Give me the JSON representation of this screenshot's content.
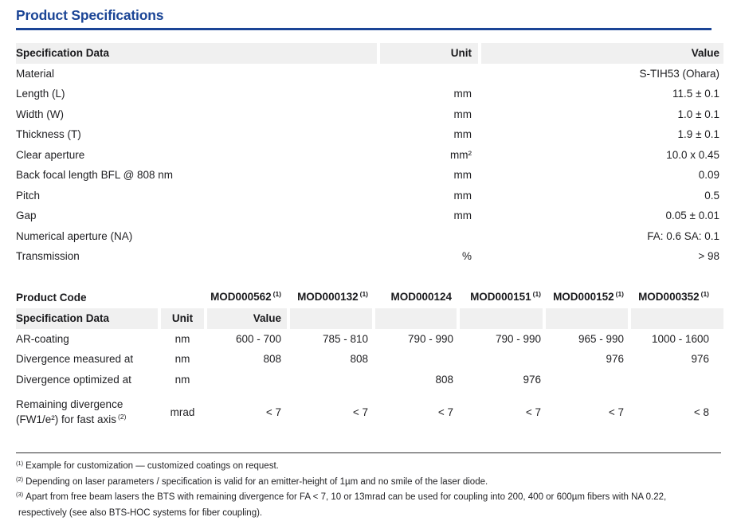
{
  "page": {
    "title": "Product Specifications"
  },
  "colors": {
    "accent_blue": "#1b4596",
    "header_band_gray": "#f0f0f0",
    "text": "#1f1f22"
  },
  "table1": {
    "headers": {
      "spec": "Specification Data",
      "unit": "Unit",
      "value": "Value"
    },
    "rows": [
      {
        "name": "Material",
        "unit": "",
        "value": "S-TIH53 (Ohara)"
      },
      {
        "name": "Length (L)",
        "unit": "mm",
        "value": "11.5 ± 0.1"
      },
      {
        "name": "Width (W)",
        "unit": "mm",
        "value": "1.0 ± 0.1"
      },
      {
        "name": "Thickness (T)",
        "unit": "mm",
        "value": "1.9 ± 0.1"
      },
      {
        "name": "Clear aperture",
        "unit": "mm²",
        "value": "10.0 x 0.45"
      },
      {
        "name": "Back focal length BFL @ 808 nm",
        "unit": "mm",
        "value": "0.09"
      },
      {
        "name": "Pitch",
        "unit": "mm",
        "value": "0.5"
      },
      {
        "name": "Gap",
        "unit": "mm",
        "value": "0.05 ± 0.01"
      },
      {
        "name": "Numerical aperture (NA)",
        "unit": "",
        "value": "FA: 0.6  SA: 0.1"
      },
      {
        "name": "Transmission",
        "unit": "%",
        "value": "> 98"
      }
    ]
  },
  "table2": {
    "product_code_label": "Product Code",
    "product_codes": [
      {
        "code": "MOD000562",
        "note": "(1)"
      },
      {
        "code": "MOD000132",
        "note": "(1)"
      },
      {
        "code": "MOD000124",
        "note": ""
      },
      {
        "code": "MOD000151",
        "note": "(1)"
      },
      {
        "code": "MOD000152",
        "note": "(1)"
      },
      {
        "code": "MOD000352",
        "note": "(1)"
      }
    ],
    "headers": {
      "spec": "Specification Data",
      "unit": "Unit",
      "value": "Value"
    },
    "rows": [
      {
        "name": "AR-coating",
        "unit": "nm",
        "values": [
          "600 - 700",
          "785 - 810",
          "790 - 990",
          "790 - 990",
          "965 - 990",
          "1000 - 1600"
        ]
      },
      {
        "name": "Divergence measured at",
        "unit": "nm",
        "values": [
          "808",
          "808",
          "",
          "",
          "976",
          "976"
        ]
      },
      {
        "name": "Divergence optimized at",
        "unit": "nm",
        "values": [
          "",
          "",
          "808",
          "976",
          "",
          ""
        ]
      }
    ],
    "last_row": {
      "name_line1": "Remaining divergence",
      "name_line2": "(FW1/e²) for fast axis",
      "note": "(2)",
      "unit": "mrad",
      "values": [
        "< 7",
        "< 7",
        "< 7",
        "< 7",
        "< 7",
        "< 8"
      ]
    }
  },
  "footnotes": [
    {
      "marker": "(1)",
      "text": "Example for customization — customized coatings on request."
    },
    {
      "marker": "(2)",
      "text": "Depending on laser parameters / specification is valid for an emitter-height of 1µm and no smile of the laser diode."
    },
    {
      "marker": "(3)",
      "text": "Apart from free beam lasers the BTS with remaining divergence for FA < 7, 10 or 13mrad can be used for coupling into 200, 400 or 600µm fibers with NA 0.22,"
    },
    {
      "marker": "",
      "text": "respectively (see also BTS-HOC systems for fiber coupling)."
    }
  ]
}
